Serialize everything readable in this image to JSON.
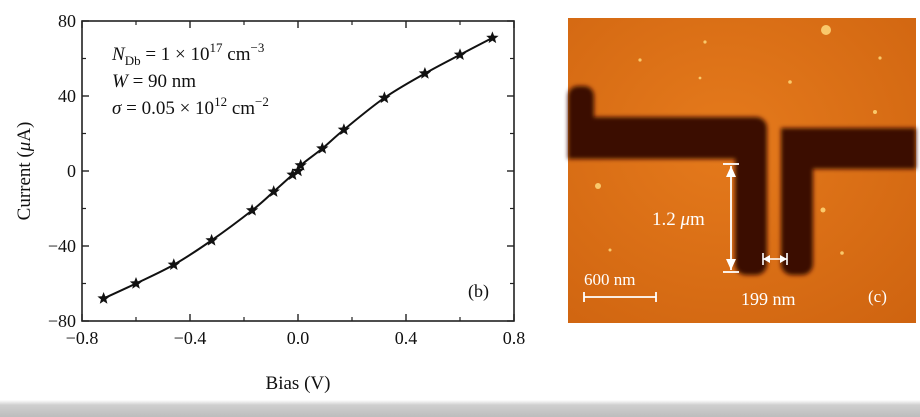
{
  "panel_b": {
    "label": "(b)",
    "annotation": {
      "line1_symbol": "N",
      "line1_subscript": "Db",
      "line1_value": " = 1 × 10",
      "line1_exponent": "17",
      "line1_unit": " cm",
      "line1_unit_exponent": "−3",
      "line2_symbol": "W",
      "line2_value": " = 90 nm",
      "line3_symbol": "σ",
      "line3_value": " = 0.05 × 10",
      "line3_exponent": "12",
      "line3_unit": " cm",
      "line3_unit_exponent": "−2"
    }
  },
  "chart_data": {
    "type": "line",
    "xlabel": "Bias (V)",
    "ylabel_prefix": "Current (",
    "ylabel_symbol": "μ",
    "ylabel_suffix": "A)",
    "xlim": [
      -0.8,
      0.8
    ],
    "ylim": [
      -80,
      80
    ],
    "xticks": [
      -0.8,
      -0.4,
      0.0,
      0.4,
      0.8
    ],
    "xtick_labels": [
      "−0.8",
      "−0.4",
      "0.0",
      "0.4",
      "0.8"
    ],
    "yticks": [
      -80,
      -40,
      0,
      40,
      80
    ],
    "ytick_labels": [
      "−80",
      "−40",
      "0",
      "40",
      "80"
    ],
    "grid": false,
    "marker": "star",
    "series": [
      {
        "x": [
          -0.72,
          -0.6,
          -0.46,
          -0.32,
          -0.17,
          -0.09,
          -0.02,
          0.0,
          0.01,
          0.09,
          0.17,
          0.32,
          0.47,
          0.6,
          0.72
        ],
        "y": [
          -68,
          -60,
          -50,
          -37,
          -21,
          -11,
          -2,
          0,
          3,
          12,
          22,
          39,
          52,
          62,
          71
        ]
      }
    ]
  },
  "panel_c": {
    "label": "(c)",
    "length_label_symbol": "1.2 ",
    "length_label_unit_symbol": "μ",
    "length_label_unit": "m",
    "gap_label": "199 nm",
    "scale_bar_label": "600 nm",
    "colors": {
      "background": "#dc6f14",
      "wire": "#3a0f06",
      "highlight": "#ffd97a",
      "annotation": "#ffffff"
    }
  }
}
